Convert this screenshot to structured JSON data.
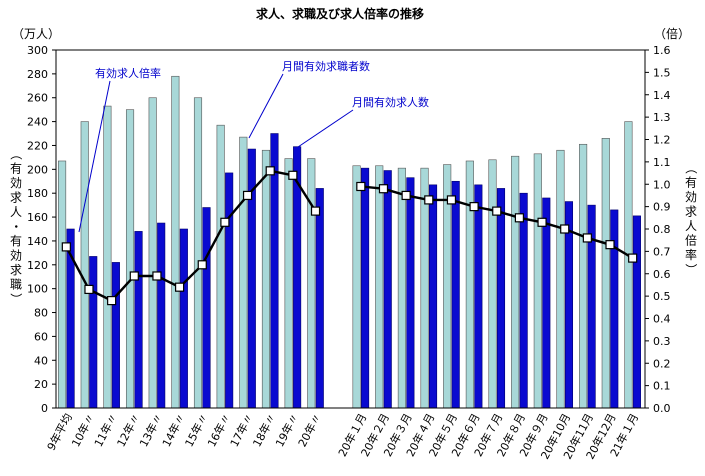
{
  "chart_data": {
    "type": "bar",
    "title": "求人、求職及び求人倍率の推移",
    "left_unit": "（万人）",
    "right_unit": "（倍）",
    "ylabel_left": "（有効求人・有効求職）",
    "ylabel_right": "（有効求人倍率）",
    "ylim_left": [
      0,
      300
    ],
    "yticks_left": [
      "0",
      "20",
      "40",
      "60",
      "80",
      "100",
      "120",
      "140",
      "160",
      "180",
      "200",
      "220",
      "240",
      "260",
      "280",
      "300"
    ],
    "ylim_right": [
      0,
      1.6
    ],
    "yticks_right": [
      "0.0",
      "0.1",
      "0.2",
      "0.3",
      "0.4",
      "0.5",
      "0.6",
      "0.7",
      "0.8",
      "0.9",
      "1.0",
      "1.1",
      "1.2",
      "1.3",
      "1.4",
      "1.5",
      "1.6"
    ],
    "categories": [
      "9年平均",
      "10年〃",
      "11年〃",
      "12年〃",
      "13年〃",
      "14年〃",
      "15年〃",
      "16年〃",
      "17年〃",
      "18年〃",
      "19年〃",
      "20年〃",
      "",
      "20年１月",
      "20年２月",
      "20年３月",
      "20年４月",
      "20年５月",
      "20年６月",
      "20年７月",
      "20年８月",
      "20年９月",
      "20年10月",
      "20年11月",
      "20年12月",
      "21年１月"
    ],
    "series": [
      {
        "name": "月間有効求職者数",
        "axis": "left",
        "kind": "bar",
        "color": "#a8d8d8",
        "values": [
          207,
          240,
          253,
          250,
          260,
          278,
          260,
          237,
          227,
          216,
          209,
          209,
          null,
          203,
          203,
          201,
          201,
          204,
          207,
          208,
          211,
          213,
          216,
          221,
          226,
          240
        ]
      },
      {
        "name": "月間有効求人数",
        "axis": "left",
        "kind": "bar",
        "color": "#0a0ad0",
        "values": [
          150,
          127,
          122,
          148,
          155,
          150,
          168,
          197,
          217,
          230,
          219,
          184,
          null,
          201,
          199,
          193,
          187,
          190,
          187,
          184,
          180,
          176,
          173,
          170,
          166,
          161
        ]
      },
      {
        "name": "有効求人倍率",
        "axis": "right",
        "kind": "line",
        "color": "#000000",
        "values": [
          0.72,
          0.53,
          0.48,
          0.59,
          0.59,
          0.54,
          0.64,
          0.83,
          0.95,
          1.06,
          1.04,
          0.88,
          null,
          0.99,
          0.98,
          0.95,
          0.93,
          0.93,
          0.9,
          0.88,
          0.85,
          0.83,
          0.8,
          0.76,
          0.73,
          0.67
        ]
      }
    ],
    "grid": false
  }
}
